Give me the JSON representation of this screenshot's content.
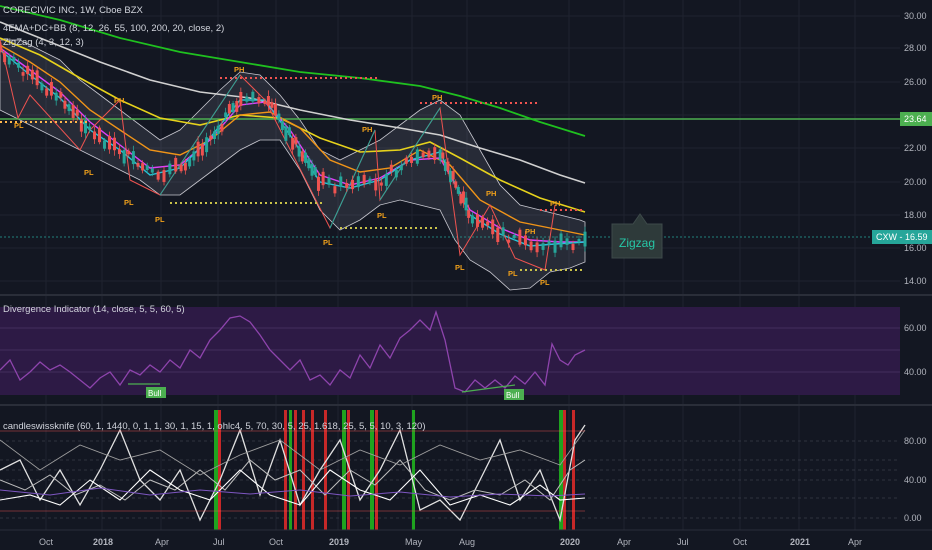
{
  "header": {
    "symbol_line": "CORECIVIC INC, 1W, Cboe BZX",
    "indicator_1": "4EMA+DC+BB (8, 12, 26, 55, 100, 200, 20, close, 2)",
    "indicator_2": "ZigZag (4, 3, 12, 3)"
  },
  "price_axis": {
    "ticks": [
      "30.00",
      "28.00",
      "26.00",
      "24.00",
      "22.00",
      "20.00",
      "18.00",
      "16.00",
      "14.00"
    ],
    "level_label": "23.64",
    "last_label": "CXW - 16.59"
  },
  "zigzag_label": "Zigzag",
  "pivots": {
    "high": "PH",
    "low": "PL"
  },
  "divergence": {
    "title": "Divergence Indicator (14, close, 5, 5, 60, 5)",
    "ticks": [
      "60.00",
      "40.00"
    ],
    "bull_label": "Bull"
  },
  "candleswiss": {
    "title": "candleswissknife (60, 1, 1440, 0, 1, 1, 30, 1, 15, 1, ohlc4, 5, 70, 30, 5, 25, 1.618, 25, 5, 5, 10, 3, 120)",
    "ticks": [
      "80.00",
      "40.00",
      "0.00"
    ]
  },
  "time_axis": {
    "labels": [
      "Oct",
      "2018",
      "Apr",
      "Jul",
      "Oct",
      "2019",
      "May",
      "Aug",
      "2020",
      "Apr",
      "Jul",
      "Oct",
      "2021",
      "Apr"
    ]
  },
  "colors": {
    "background": "#131722",
    "level_line": "#4caf50",
    "ema200": "#1fc11f",
    "ema100": "#d0d0d0",
    "ema55": "#e6d21c",
    "ema26": "#f09418",
    "ema12": "#e040fb",
    "ema8": "#26c6da",
    "candle_up": "#26a69a",
    "candle_down": "#ef5350",
    "pivot": "#ff9800",
    "divergence_band": "#3c1f5c",
    "divergence_line": "#8e44ad",
    "bull": "#4caf50",
    "last_price": "#26a69a"
  }
}
